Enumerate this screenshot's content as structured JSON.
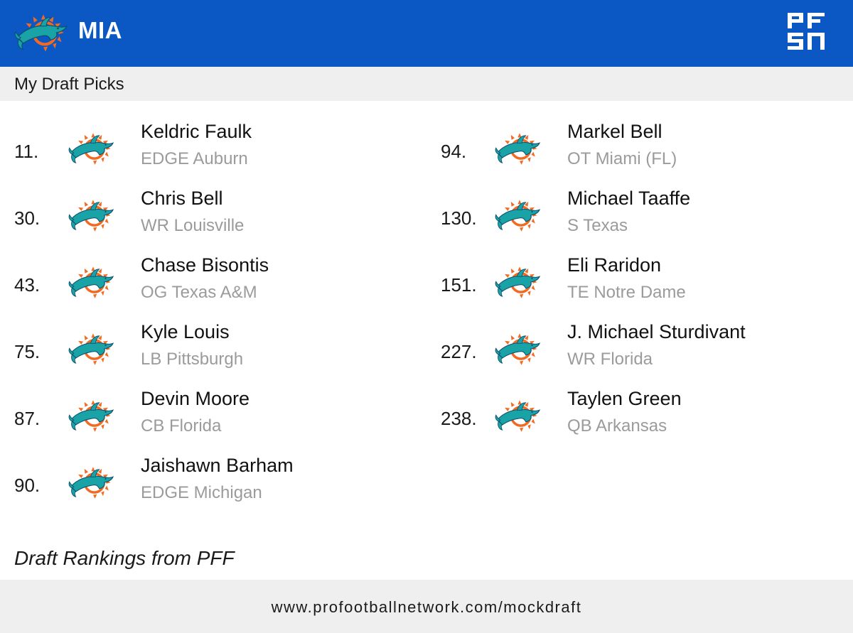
{
  "header": {
    "team_abbr": "MIA",
    "team_logo_icon": "dolphins-logo-icon",
    "brand_logo_icon": "pfsn-logo-icon",
    "background_color": "#0b57c4"
  },
  "subheader": {
    "title": "My Draft Picks"
  },
  "picks": [
    {
      "number": "11.",
      "name": "Keldric Faulk",
      "detail": "EDGE Auburn"
    },
    {
      "number": "30.",
      "name": "Chris Bell",
      "detail": "WR Louisville"
    },
    {
      "number": "43.",
      "name": "Chase Bisontis",
      "detail": "OG Texas A&M"
    },
    {
      "number": "75.",
      "name": "Kyle Louis",
      "detail": "LB Pittsburgh"
    },
    {
      "number": "87.",
      "name": "Devin Moore",
      "detail": "CB Florida"
    },
    {
      "number": "90.",
      "name": "Jaishawn Barham",
      "detail": "EDGE Michigan"
    },
    {
      "number": "94.",
      "name": "Markel Bell",
      "detail": "OT Miami (FL)"
    },
    {
      "number": "130.",
      "name": "Michael Taaffe",
      "detail": "S Texas"
    },
    {
      "number": "151.",
      "name": "Eli Raridon",
      "detail": "TE Notre Dame"
    },
    {
      "number": "227.",
      "name": "J. Michael Sturdivant",
      "detail": "WR Florida"
    },
    {
      "number": "238.",
      "name": "Taylen Green",
      "detail": "QB Arkansas"
    }
  ],
  "source_note": "Draft Rankings from PFF",
  "footer": {
    "url": "www.profootballnetwork.com/mockdraft"
  }
}
